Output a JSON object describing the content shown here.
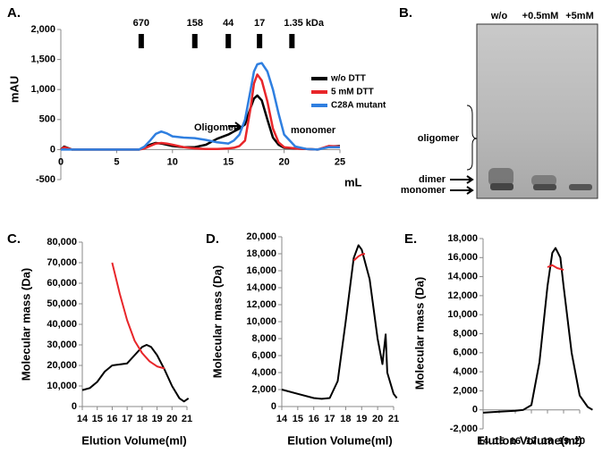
{
  "chart_data": [
    {
      "type": "line",
      "panel_label": "A.",
      "x_label": "mL",
      "y_label": "mAU",
      "x": [
        0,
        0.3,
        1,
        5,
        7,
        7.5,
        8,
        8.5,
        9,
        9.5,
        10,
        11,
        12,
        13,
        14,
        15,
        15.5,
        16,
        16.5,
        17,
        17.3,
        17.6,
        18,
        18.5,
        19,
        19.5,
        20,
        21,
        22,
        23,
        24,
        25
      ],
      "series": [
        {
          "name": "w/o DTT",
          "color": "#000000",
          "values": [
            0,
            50,
            0,
            0,
            0,
            30,
            80,
            110,
            100,
            80,
            60,
            40,
            40,
            80,
            180,
            250,
            300,
            350,
            420,
            700,
            850,
            900,
            820,
            500,
            200,
            80,
            30,
            20,
            10,
            0,
            50,
            60
          ]
        },
        {
          "name": "5 mM DTT",
          "color": "#e8262a",
          "values": [
            0,
            40,
            0,
            0,
            0,
            20,
            60,
            100,
            110,
            100,
            80,
            40,
            20,
            10,
            10,
            20,
            30,
            60,
            150,
            700,
            1100,
            1250,
            1150,
            800,
            350,
            120,
            40,
            20,
            10,
            0,
            60,
            50
          ]
        },
        {
          "name": "C28A mutant",
          "color": "#2f7fe0",
          "values": [
            0,
            0,
            0,
            0,
            0,
            50,
            150,
            260,
            300,
            270,
            220,
            200,
            190,
            160,
            120,
            100,
            150,
            250,
            500,
            1000,
            1300,
            1420,
            1440,
            1300,
            1000,
            600,
            250,
            50,
            10,
            0,
            40,
            40
          ]
        }
      ],
      "xlim": [
        0,
        25
      ],
      "xticks": [
        0,
        5,
        10,
        15,
        20,
        25
      ],
      "ylim": [
        -500,
        2000
      ],
      "yticks": [
        -500,
        0,
        500,
        {
          "value": 1000,
          "label": "1,000"
        },
        {
          "value": 1500,
          "label": "1,500"
        },
        {
          "value": 2000,
          "label": "2,000"
        }
      ],
      "markers": [
        {
          "x": 7.2,
          "label": "670"
        },
        {
          "x": 12,
          "label": "158"
        },
        {
          "x": 15,
          "label": "44"
        },
        {
          "x": 17.8,
          "label": "17"
        },
        {
          "x": 20.7,
          "label": "1.35 kDa"
        }
      ],
      "annotations": [
        {
          "text": "Oligomer",
          "color": "#000000"
        },
        {
          "text": "monomer",
          "color": "#e8262a"
        }
      ]
    },
    {
      "type": "line",
      "panel_label": "C.",
      "x_label": "Elution Volume(ml)",
      "y_label": "Molecular mass (Da)",
      "series": [
        {
          "color": "#000000",
          "x": [
            14,
            14.5,
            15,
            15.5,
            16,
            16.5,
            17,
            17.5,
            18,
            18.3,
            18.6,
            19,
            19.5,
            20,
            20.5,
            20.8,
            21.1
          ],
          "values": [
            8000,
            9000,
            12000,
            17000,
            20000,
            20500,
            21000,
            25000,
            29000,
            30000,
            29000,
            25000,
            18000,
            10000,
            4000,
            2500,
            4000
          ]
        },
        {
          "color": "#e8262a",
          "x": [
            16,
            16.5,
            17,
            17.5,
            18,
            18.5,
            19,
            19.5
          ],
          "values": [
            70000,
            55000,
            42000,
            32000,
            26000,
            22000,
            19500,
            18500
          ]
        }
      ],
      "xlim": [
        14,
        21
      ],
      "xticks": [
        14,
        15,
        16,
        17,
        18,
        19,
        20,
        21
      ],
      "ylim": [
        0,
        80000
      ],
      "yticks": [
        0,
        {
          "value": 10000,
          "label": "10,000"
        },
        {
          "value": 20000,
          "label": "20,000"
        },
        {
          "value": 30000,
          "label": "30,000"
        },
        {
          "value": 40000,
          "label": "40,000"
        },
        {
          "value": 50000,
          "label": "50,000"
        },
        {
          "value": 60000,
          "label": "60,000"
        },
        {
          "value": 70000,
          "label": "70,000"
        },
        {
          "value": 80000,
          "label": "80,000"
        }
      ]
    },
    {
      "type": "line",
      "panel_label": "D.",
      "x_label": "Elution Volume(ml)",
      "y_label": "Molecular mass (Da)",
      "series": [
        {
          "color": "#000000",
          "x": [
            14,
            15,
            16,
            16.5,
            17,
            17.5,
            18,
            18.5,
            18.8,
            19,
            19.5,
            20,
            20.3,
            20.5,
            20.6,
            21,
            21.2
          ],
          "values": [
            2000,
            1500,
            1000,
            900,
            1000,
            3000,
            10000,
            17500,
            19000,
            18500,
            15000,
            8000,
            5000,
            8500,
            4000,
            1500,
            1000
          ]
        },
        {
          "color": "#e8262a",
          "x": [
            18.5,
            18.8,
            19,
            19.2
          ],
          "values": [
            17200,
            17700,
            17900,
            18000
          ]
        }
      ],
      "xlim": [
        14,
        21
      ],
      "xticks": [
        14,
        15,
        16,
        17,
        18,
        19,
        20,
        21
      ],
      "ylim": [
        0,
        20000
      ],
      "yticks": [
        0,
        {
          "value": 2000,
          "label": "2,000"
        },
        {
          "value": 4000,
          "label": "4,000"
        },
        {
          "value": 6000,
          "label": "6,000"
        },
        {
          "value": 8000,
          "label": "8,000"
        },
        {
          "value": 10000,
          "label": "10,000"
        },
        {
          "value": 12000,
          "label": "12,000"
        },
        {
          "value": 14000,
          "label": "14,000"
        },
        {
          "value": 16000,
          "label": "16,000"
        },
        {
          "value": 18000,
          "label": "18,000"
        },
        {
          "value": 20000,
          "label": "20,000"
        }
      ]
    },
    {
      "type": "line",
      "panel_label": "E.",
      "x_label": "Elution Volume(ml)",
      "y_label": "Molecular mass (Da)",
      "series": [
        {
          "color": "#000000",
          "x": [
            14,
            15,
            16,
            16.5,
            17,
            17.5,
            18,
            18.3,
            18.5,
            18.8,
            19,
            19.5,
            20,
            20.5,
            20.8
          ],
          "values": [
            -300,
            -200,
            -100,
            0,
            500,
            5000,
            13000,
            16500,
            17000,
            16000,
            13000,
            6000,
            1500,
            300,
            0
          ]
        },
        {
          "color": "#e8262a",
          "x": [
            18,
            18.3,
            18.6,
            19
          ],
          "values": [
            15000,
            15200,
            14900,
            14700
          ]
        }
      ],
      "xlim": [
        14,
        20
      ],
      "xticks": [
        14,
        15,
        16,
        17,
        18,
        19,
        20
      ],
      "ylim": [
        -2000,
        18000
      ],
      "yticks": [
        {
          "value": -2000,
          "label": "-2,000"
        },
        0,
        {
          "value": 2000,
          "label": "2,000"
        },
        {
          "value": 4000,
          "label": "4,000"
        },
        {
          "value": 6000,
          "label": "6,000"
        },
        {
          "value": 8000,
          "label": "8,000"
        },
        {
          "value": 10000,
          "label": "10,000"
        },
        {
          "value": 12000,
          "label": "12,000"
        },
        {
          "value": 14000,
          "label": "14,000"
        },
        {
          "value": 16000,
          "label": "16,000"
        },
        {
          "value": 18000,
          "label": "18,000"
        }
      ]
    }
  ],
  "gel": {
    "panel_label": "B.",
    "lanes": [
      "w/o",
      "+0.5mM",
      "+5mM"
    ],
    "bands": [
      "oligomer",
      "dimer",
      "monomer"
    ]
  }
}
